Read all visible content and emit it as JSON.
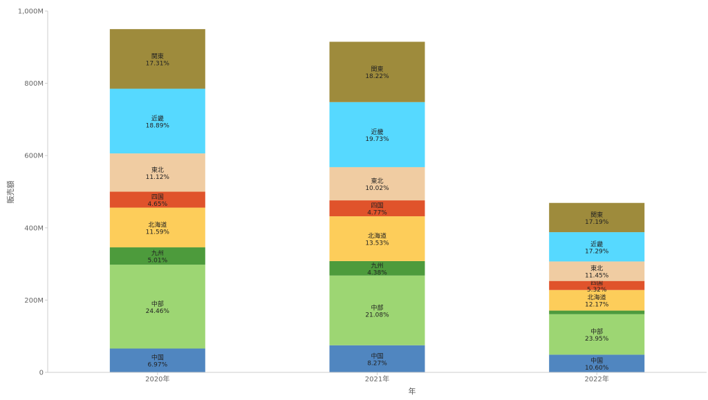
{
  "chart_data": {
    "type": "bar",
    "stacked": true,
    "xlabel": "年",
    "ylabel": "販売額",
    "ylim": [
      0,
      1000000000
    ],
    "yticks": [
      "0",
      "200M",
      "400M",
      "600M",
      "800M",
      "1,000M"
    ],
    "ytick_values": [
      0,
      200000000,
      400000000,
      600000000,
      800000000,
      1000000000
    ],
    "categories": [
      "2020年",
      "2021年",
      "2022年"
    ],
    "grid": false,
    "legend": "none",
    "series": [
      {
        "name": "中国",
        "color": "#5086c0",
        "values": [
          66000000,
          75000000,
          49000000
        ],
        "labels": [
          "6.97%",
          "8.27%",
          "10.60%"
        ]
      },
      {
        "name": "中部",
        "color": "#9dd673",
        "values": [
          232000000,
          193000000,
          112000000
        ],
        "labels": [
          "24.46%",
          "21.08%",
          "23.95%"
        ]
      },
      {
        "name": "九州",
        "color": "#4d9b3c",
        "values": [
          48000000,
          40000000,
          10000000
        ],
        "labels": [
          "5.01%",
          "4.38%",
          ""
        ]
      },
      {
        "name": "北海道",
        "color": "#fdcd5a",
        "values": [
          110000000,
          124000000,
          57000000
        ],
        "labels": [
          "11.59%",
          "13.53%",
          "12.17%"
        ]
      },
      {
        "name": "四国",
        "color": "#e0532b",
        "values": [
          44000000,
          44000000,
          25000000
        ],
        "labels": [
          "4.65%",
          "4.77%",
          "5.32%"
        ]
      },
      {
        "name": "東北",
        "color": "#f0cca2",
        "values": [
          106000000,
          92000000,
          54000000
        ],
        "labels": [
          "11.12%",
          "10.02%",
          "11.45%"
        ]
      },
      {
        "name": "近畿",
        "color": "#56d9ff",
        "values": [
          179000000,
          180000000,
          81000000
        ],
        "labels": [
          "18.89%",
          "19.73%",
          "17.29%"
        ]
      },
      {
        "name": "関東",
        "color": "#9e8b3c",
        "values": [
          165000000,
          167000000,
          81000000
        ],
        "labels": [
          "17.31%",
          "18.22%",
          "17.19%"
        ]
      }
    ]
  }
}
